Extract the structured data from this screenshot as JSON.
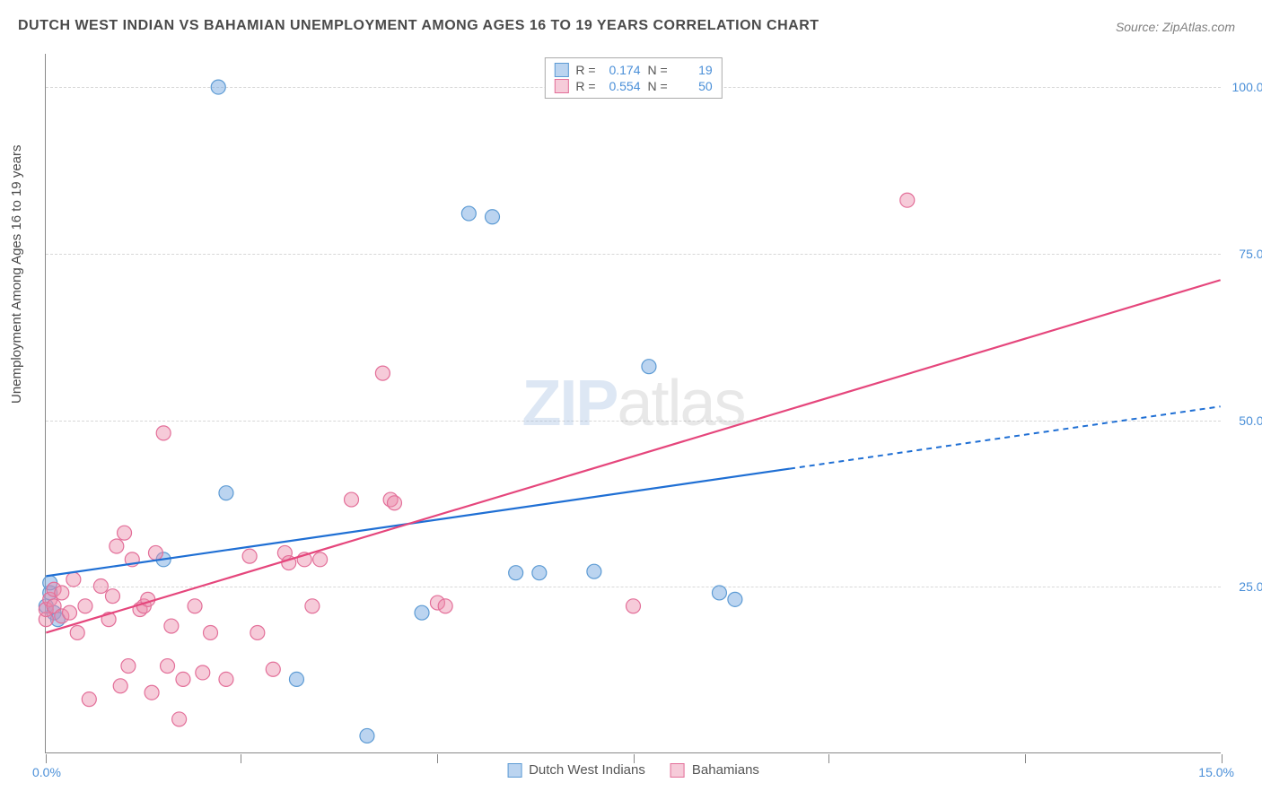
{
  "title": "DUTCH WEST INDIAN VS BAHAMIAN UNEMPLOYMENT AMONG AGES 16 TO 19 YEARS CORRELATION CHART",
  "source": "Source: ZipAtlas.com",
  "ylabel": "Unemployment Among Ages 16 to 19 years",
  "watermark_bold": "ZIP",
  "watermark_thin": "atlas",
  "chart": {
    "type": "scatter",
    "xlim": [
      0,
      15
    ],
    "ylim": [
      0,
      105
    ],
    "xtick_labels": {
      "left": "0.0%",
      "right": "15.0%"
    },
    "ytick_values": [
      25,
      50,
      75,
      100
    ],
    "ytick_labels": [
      "25.0%",
      "50.0%",
      "75.0%",
      "100.0%"
    ],
    "xtick_positions_pct": [
      0,
      16.6,
      33.3,
      50,
      66.6,
      83.3,
      100
    ],
    "grid_color": "#d8d8d8",
    "background_color": "#ffffff",
    "axis_color": "#888888"
  },
  "series": [
    {
      "name": "Dutch West Indians",
      "marker_color_fill": "rgba(120,170,225,0.5)",
      "marker_color_stroke": "#5d9bd4",
      "marker_radius": 8,
      "line_color": "#1f6fd4",
      "line_dash_extend": true,
      "R": "0.174",
      "N": "19",
      "trend": {
        "x1": 0,
        "y1": 26.5,
        "x2": 15,
        "y2": 52,
        "solid_until_x": 9.5
      },
      "points": [
        [
          0.0,
          22
        ],
        [
          0.05,
          24
        ],
        [
          0.1,
          21
        ],
        [
          0.15,
          20
        ],
        [
          1.5,
          29
        ],
        [
          2.3,
          39
        ],
        [
          2.2,
          100
        ],
        [
          3.2,
          11
        ],
        [
          4.1,
          2.5
        ],
        [
          5.4,
          81
        ],
        [
          5.7,
          80.5
        ],
        [
          6.0,
          27
        ],
        [
          7.0,
          27.2
        ],
        [
          7.7,
          58
        ],
        [
          8.6,
          24
        ],
        [
          8.8,
          23
        ],
        [
          4.8,
          21
        ],
        [
          0.05,
          25.5
        ],
        [
          6.3,
          27
        ]
      ]
    },
    {
      "name": "Bahamians",
      "marker_color_fill": "rgba(235,140,170,0.45)",
      "marker_color_stroke": "#e36f99",
      "marker_radius": 8,
      "line_color": "#e5467c",
      "line_dash_extend": false,
      "R": "0.554",
      "N": "50",
      "trend": {
        "x1": 0,
        "y1": 18,
        "x2": 15,
        "y2": 71,
        "solid_until_x": 15
      },
      "points": [
        [
          0.0,
          20
        ],
        [
          0.0,
          21.5
        ],
        [
          0.05,
          23
        ],
        [
          0.1,
          24.5
        ],
        [
          0.1,
          22
        ],
        [
          0.2,
          24
        ],
        [
          0.2,
          20.5
        ],
        [
          0.3,
          21
        ],
        [
          0.35,
          26
        ],
        [
          0.4,
          18
        ],
        [
          0.5,
          22
        ],
        [
          0.55,
          8
        ],
        [
          0.7,
          25
        ],
        [
          0.8,
          20
        ],
        [
          0.85,
          23.5
        ],
        [
          0.9,
          31
        ],
        [
          0.95,
          10
        ],
        [
          1.0,
          33
        ],
        [
          1.05,
          13
        ],
        [
          1.1,
          29
        ],
        [
          1.2,
          21.5
        ],
        [
          1.25,
          22
        ],
        [
          1.3,
          23
        ],
        [
          1.35,
          9
        ],
        [
          1.4,
          30
        ],
        [
          1.5,
          48
        ],
        [
          1.55,
          13
        ],
        [
          1.6,
          19
        ],
        [
          1.7,
          5
        ],
        [
          1.75,
          11
        ],
        [
          1.9,
          22
        ],
        [
          2.0,
          12
        ],
        [
          2.1,
          18
        ],
        [
          2.3,
          11
        ],
        [
          2.6,
          29.5
        ],
        [
          2.7,
          18
        ],
        [
          2.9,
          12.5
        ],
        [
          3.05,
          30
        ],
        [
          3.1,
          28.5
        ],
        [
          3.3,
          29
        ],
        [
          3.4,
          22
        ],
        [
          3.5,
          29
        ],
        [
          3.9,
          38
        ],
        [
          4.3,
          57
        ],
        [
          4.4,
          38
        ],
        [
          4.45,
          37.5
        ],
        [
          5.0,
          22.5
        ],
        [
          5.1,
          22
        ],
        [
          7.5,
          22
        ],
        [
          11.0,
          83
        ]
      ]
    }
  ],
  "legend_top_labels": {
    "R": "R  =",
    "N": "N  ="
  },
  "legend_bottom": [
    {
      "label": "Dutch West Indians",
      "fill": "rgba(120,170,225,0.5)",
      "stroke": "#5d9bd4"
    },
    {
      "label": "Bahamians",
      "fill": "rgba(235,140,170,0.45)",
      "stroke": "#e36f99"
    }
  ]
}
